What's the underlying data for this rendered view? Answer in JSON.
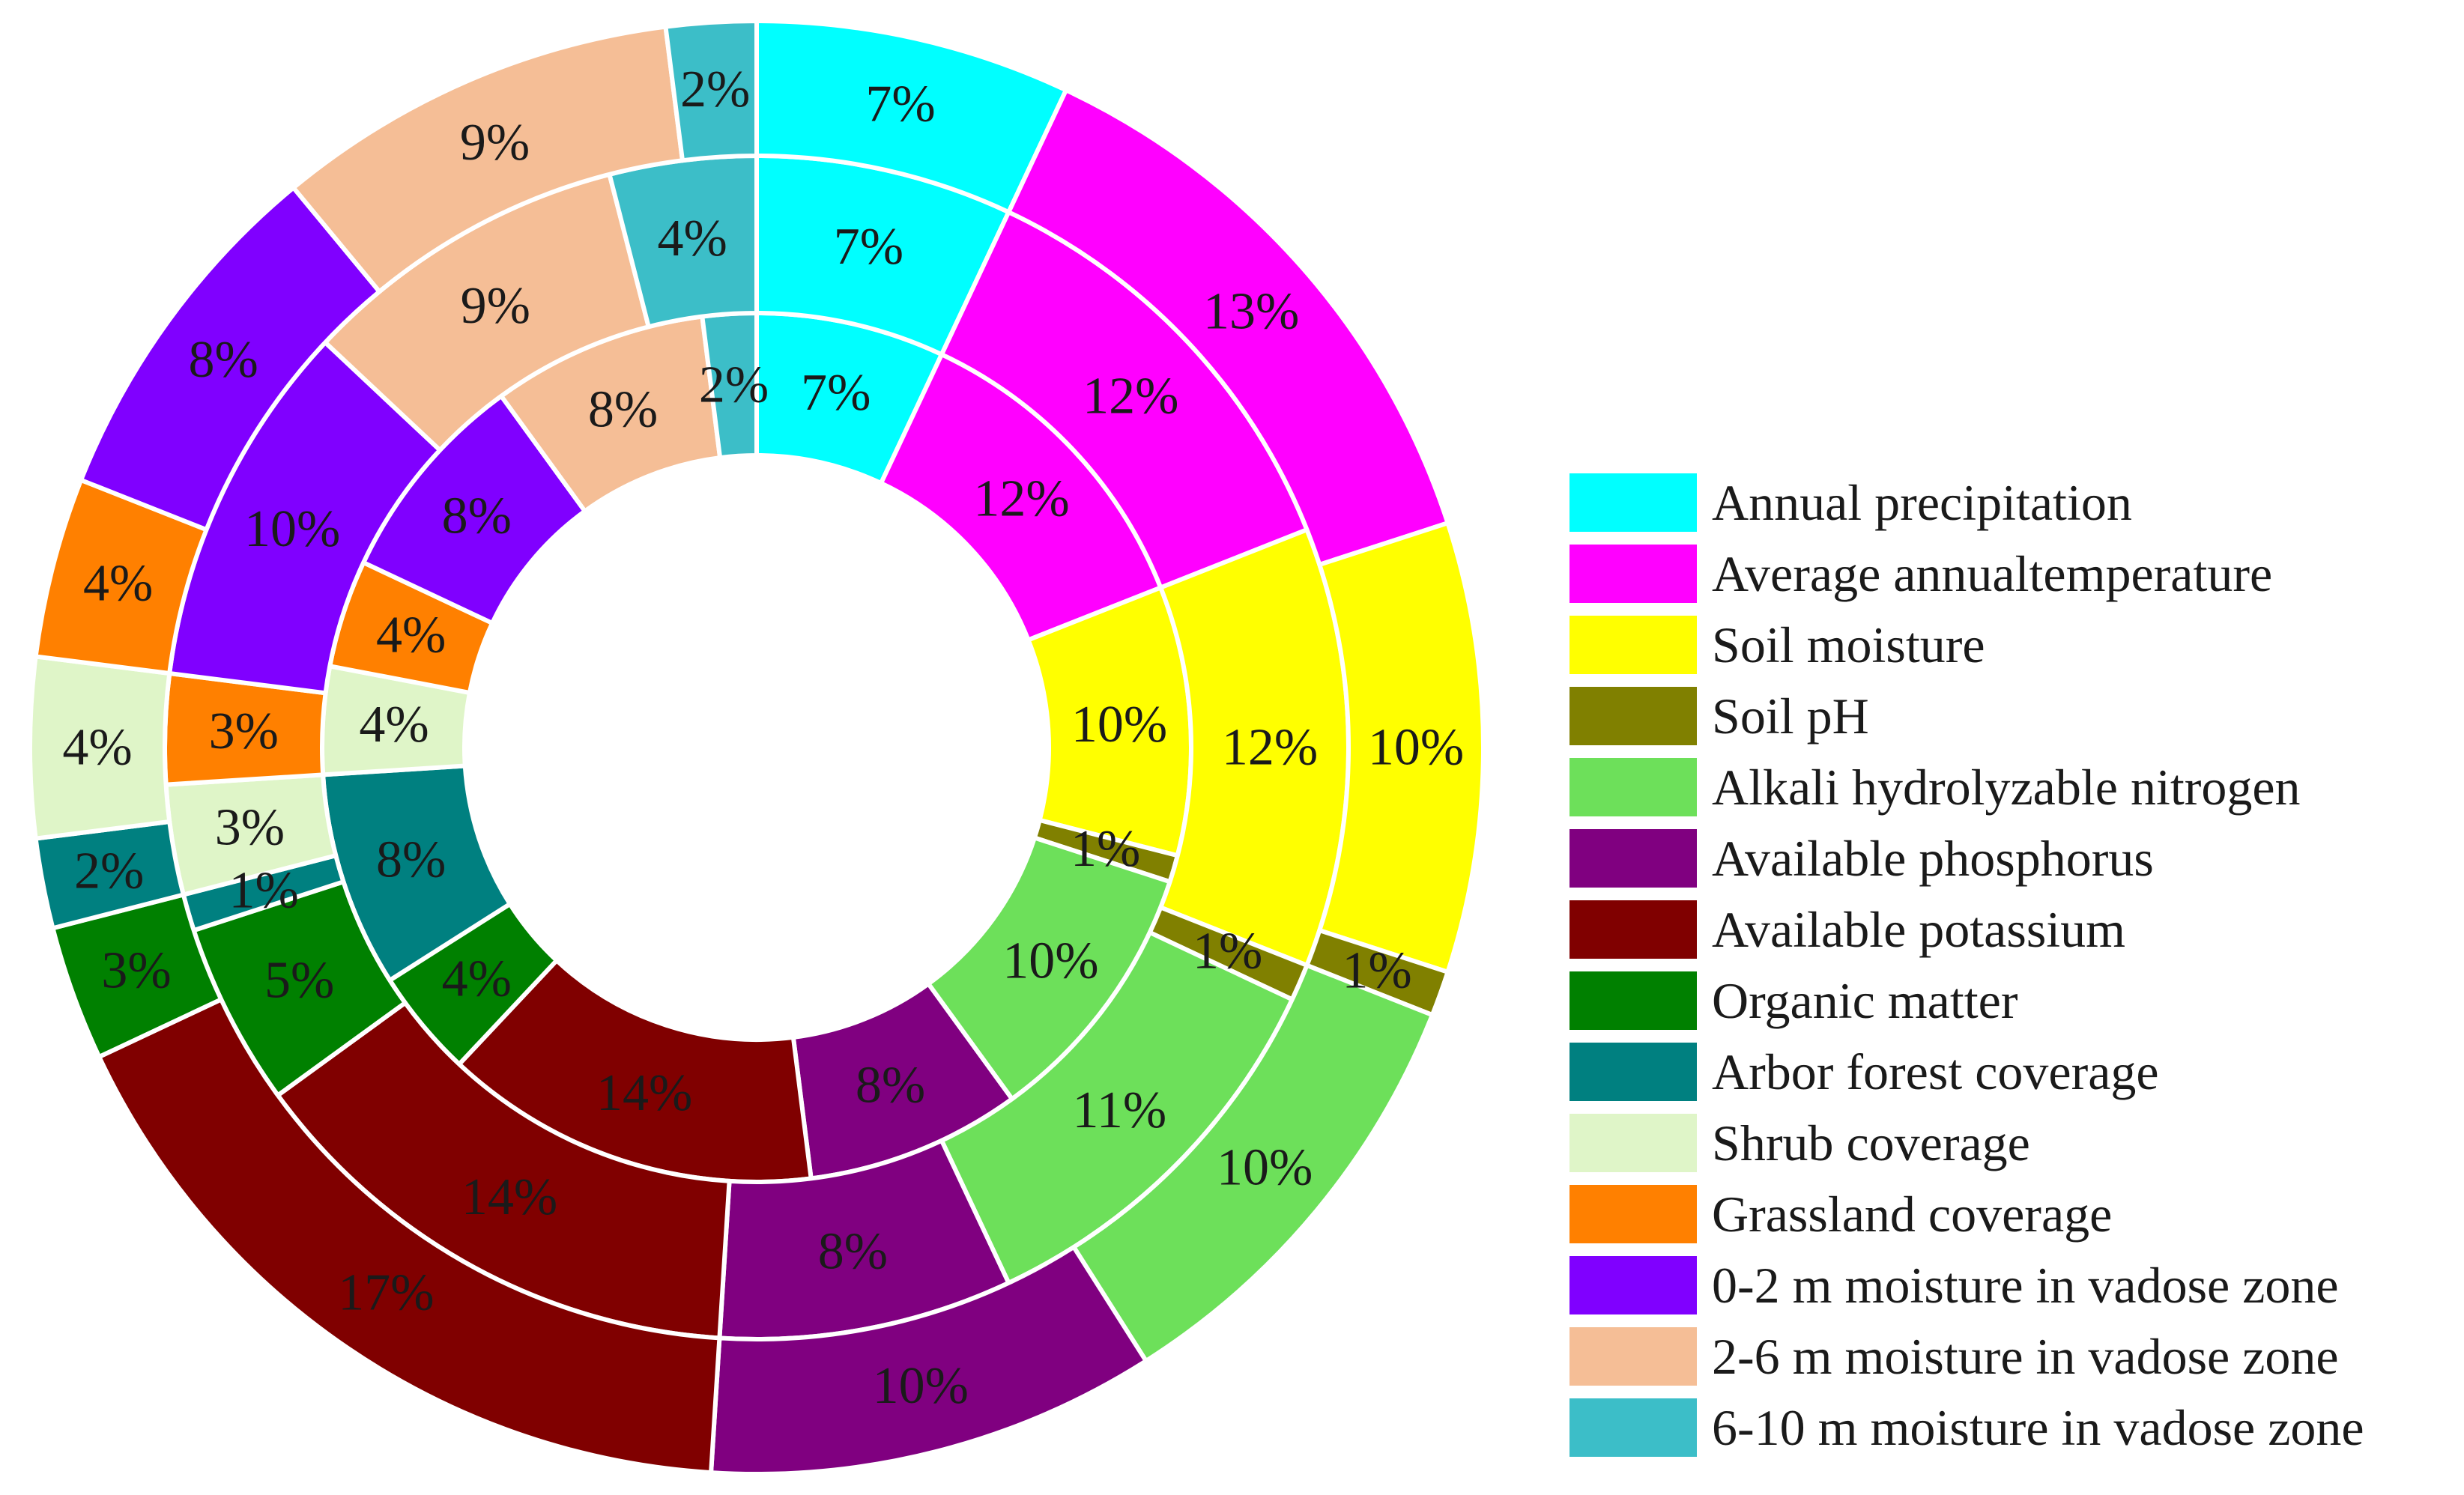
{
  "chart_data": {
    "type": "pie",
    "subtype": "multi-ring-donut",
    "title": "",
    "legend_position": "right",
    "categories": [
      "Annual precipitation",
      "Average annualtemperature",
      "Soil moisture",
      "Soil pH",
      "Alkali hydrolyzable nitrogen",
      "Available phosphorus",
      "Available potassium",
      "Organic matter",
      "Arbor forest coverage",
      "Shrub coverage",
      "Grassland coverage",
      "0-2 m moisture in vadose zone",
      "2-6 m moisture in vadose zone",
      "6-10 m moisture in vadose zone"
    ],
    "colors": [
      "#00ffff",
      "#ff00ff",
      "#ffff00",
      "#808000",
      "#6de05a",
      "#800080",
      "#800000",
      "#008000",
      "#008080",
      "#dff5c8",
      "#ff8000",
      "#8000ff",
      "#f5be96",
      "#3cbec8"
    ],
    "series": [
      {
        "name": "inner ring",
        "values": [
          7,
          12,
          10,
          1,
          10,
          8,
          14,
          4,
          8,
          4,
          4,
          8,
          8,
          2
        ],
        "labels": [
          "7%",
          "12%",
          "10%",
          "1%",
          "10%",
          "8%",
          "14%",
          "4%",
          "8%",
          "4%",
          "4%",
          "8%",
          "8%",
          "2%"
        ]
      },
      {
        "name": "middle ring",
        "values": [
          7,
          12,
          12,
          1,
          11,
          8,
          14,
          5,
          1,
          3,
          3,
          10,
          9,
          4
        ],
        "labels": [
          "7%",
          "12%",
          "12%",
          "1%",
          "11%",
          "8%",
          "14%",
          "5%",
          "1%",
          "3%",
          "3%",
          "10%",
          "9%",
          "4%"
        ]
      },
      {
        "name": "outer ring",
        "values": [
          7,
          13,
          10,
          1,
          10,
          10,
          17,
          3,
          2,
          4,
          4,
          8,
          9,
          2
        ],
        "labels": [
          "7%",
          "13%",
          "10%",
          "1%",
          "10%",
          "10%",
          "17%",
          "3%",
          "2%",
          "4%",
          "4%",
          "8%",
          "9%",
          "2%"
        ]
      }
    ]
  }
}
